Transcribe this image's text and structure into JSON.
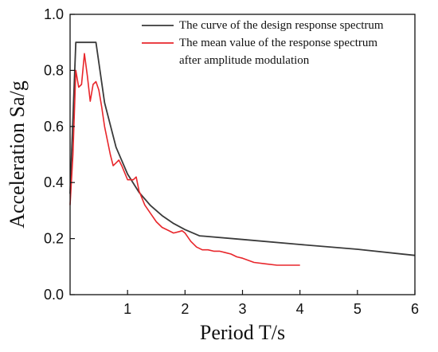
{
  "chart_data": {
    "type": "line",
    "xlabel": "Period T/s",
    "ylabel": "Acceleration Sa/g",
    "xlim": [
      0,
      6
    ],
    "ylim": [
      0,
      1.0
    ],
    "x_ticks": [
      1,
      2,
      3,
      4,
      5,
      6
    ],
    "x_tick_labels": [
      "1",
      "2",
      "3",
      "4",
      "5",
      "6"
    ],
    "y_ticks": [
      0,
      0.2,
      0.4,
      0.6,
      0.8,
      1.0
    ],
    "y_tick_labels": [
      "0.0",
      "0.2",
      "0.4",
      "0.6",
      "0.8",
      "1.0"
    ],
    "grid": false,
    "legend_position": "top-right",
    "series": [
      {
        "name": "The curve of the design response spectrum",
        "legend_lines": [
          "The curve of the design response spectrum"
        ],
        "color": "#3a3a3a",
        "x": [
          0.0,
          0.1,
          0.45,
          0.6,
          0.8,
          1.0,
          1.2,
          1.4,
          1.6,
          1.8,
          2.0,
          2.25,
          3.0,
          4.0,
          5.0,
          6.0
        ],
        "y": [
          0.36,
          0.9,
          0.9,
          0.685,
          0.526,
          0.43,
          0.365,
          0.318,
          0.282,
          0.254,
          0.232,
          0.21,
          0.197,
          0.179,
          0.162,
          0.14
        ]
      },
      {
        "name": "The mean value of the response spectrum after amplitude modulation",
        "legend_lines": [
          "The mean value of the response spectrum",
          "after amplitude modulation"
        ],
        "color": "#e8262b",
        "x": [
          0.0,
          0.05,
          0.1,
          0.15,
          0.2,
          0.25,
          0.3,
          0.35,
          0.4,
          0.45,
          0.5,
          0.55,
          0.6,
          0.7,
          0.75,
          0.8,
          0.85,
          0.9,
          1.0,
          1.1,
          1.15,
          1.2,
          1.3,
          1.4,
          1.5,
          1.6,
          1.7,
          1.8,
          1.9,
          1.95,
          2.0,
          2.1,
          2.2,
          2.3,
          2.4,
          2.5,
          2.6,
          2.7,
          2.8,
          2.9,
          3.0,
          3.2,
          3.4,
          3.6,
          3.8,
          4.0
        ],
        "y": [
          0.32,
          0.5,
          0.8,
          0.74,
          0.75,
          0.86,
          0.78,
          0.69,
          0.75,
          0.76,
          0.73,
          0.67,
          0.6,
          0.5,
          0.46,
          0.47,
          0.48,
          0.46,
          0.41,
          0.41,
          0.42,
          0.37,
          0.32,
          0.29,
          0.26,
          0.24,
          0.23,
          0.22,
          0.225,
          0.228,
          0.22,
          0.19,
          0.17,
          0.16,
          0.16,
          0.155,
          0.155,
          0.15,
          0.145,
          0.135,
          0.13,
          0.115,
          0.11,
          0.105,
          0.105,
          0.105
        ]
      }
    ]
  }
}
